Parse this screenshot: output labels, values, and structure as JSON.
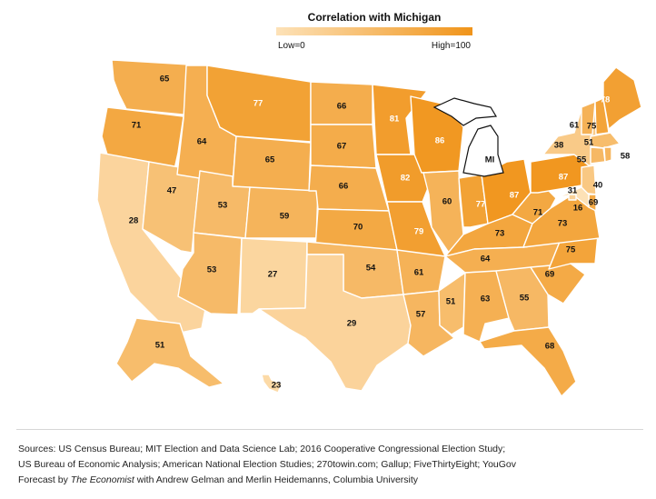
{
  "legend": {
    "title": "Correlation with Michigan",
    "low": "Low=0",
    "high": "High=100"
  },
  "colors": {
    "low": "#fde2b8",
    "high": "#f0941a"
  },
  "highlight": {
    "state": "MI",
    "label": "MI"
  },
  "states": {
    "WA": 65,
    "OR": 71,
    "CA": 28,
    "NV": 47,
    "ID": 64,
    "MT": 77,
    "WY": 65,
    "UT": 53,
    "AZ": 53,
    "CO": 59,
    "NM": 27,
    "ND": 66,
    "SD": 67,
    "NE": 66,
    "KS": 70,
    "OK": 54,
    "TX": 29,
    "MN": 81,
    "IA": 82,
    "MO": 79,
    "AR": 61,
    "LA": 57,
    "WI": 86,
    "IL": 60,
    "MS": 51,
    "IN": 77,
    "OH": 87,
    "KY": 73,
    "TN": 64,
    "AL": 63,
    "GA": 55,
    "FL": 68,
    "SC": 69,
    "NC": 75,
    "VA": 73,
    "WV": 71,
    "PA": 87,
    "NY": 38,
    "VT": 61,
    "NH": 75,
    "ME": 78,
    "MA": 51,
    "CT": 55,
    "RI": 58,
    "NJ": 40,
    "DE": 69,
    "MD": 16,
    "DC": 31,
    "AK": 51,
    "HI": 23
  },
  "footer": {
    "sources_1": "Sources: US Census Bureau; MIT Election and Data Science Lab; 2016 Cooperative Congressional Election Study;",
    "sources_2": "US Bureau of Economic Analysis; American National Election Studies; 270towin.com; Gallup; FiveThirtyEight; YouGov",
    "credit_prefix": "Forecast by ",
    "credit_pub": "The Economist",
    "credit_suffix": " with Andrew Gelman and Merlin Heidemanns, Columbia University"
  }
}
